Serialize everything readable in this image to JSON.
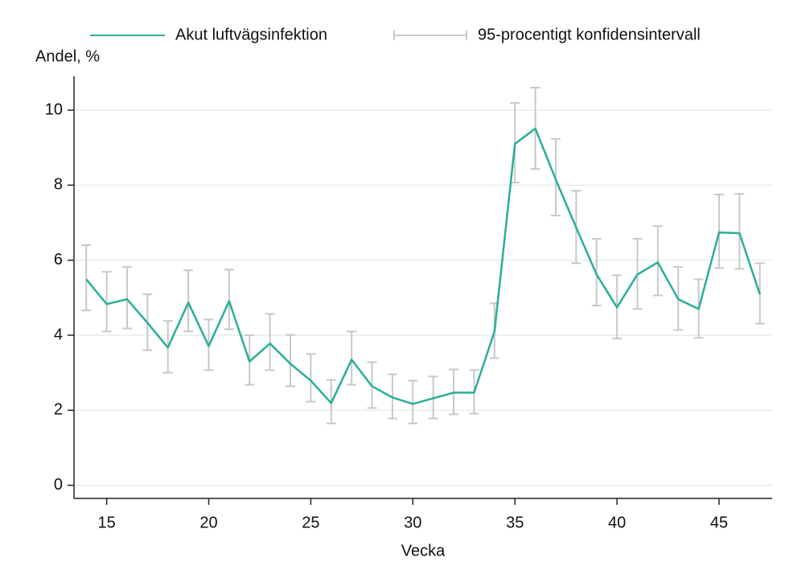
{
  "chart_data": {
    "type": "line",
    "y_label": "Andel, %",
    "x_label": "Vecka",
    "x": [
      14,
      15,
      16,
      17,
      18,
      19,
      20,
      21,
      22,
      23,
      24,
      25,
      26,
      27,
      28,
      29,
      30,
      31,
      32,
      33,
      34,
      35,
      36,
      37,
      38,
      39,
      40,
      41,
      42,
      43,
      44,
      45,
      46,
      47
    ],
    "series": [
      {
        "name": "Akut luftvägsinfektion",
        "color": "#2aae97",
        "values": [
          5.49,
          4.83,
          4.96,
          4.33,
          3.67,
          4.87,
          3.71,
          4.91,
          3.3,
          3.78,
          3.24,
          2.79,
          2.19,
          3.35,
          2.64,
          2.34,
          2.17,
          2.32,
          2.47,
          2.47,
          4.1,
          9.1,
          9.51,
          8.15,
          6.87,
          5.62,
          4.74,
          5.62,
          5.94,
          4.96,
          4.7,
          6.74,
          6.72,
          5.09
        ]
      },
      {
        "name": "95-procentigt konfidensintervall",
        "color": "#c8c8c8",
        "lower": [
          4.66,
          4.1,
          4.18,
          3.6,
          3.0,
          4.1,
          3.07,
          4.16,
          2.68,
          3.07,
          2.64,
          2.23,
          1.65,
          2.68,
          2.06,
          1.78,
          1.65,
          1.78,
          1.89,
          1.91,
          3.39,
          8.07,
          8.43,
          7.19,
          5.92,
          4.79,
          3.91,
          4.7,
          5.06,
          4.14,
          3.93,
          5.79,
          5.77,
          4.31
        ],
        "upper": [
          6.4,
          5.69,
          5.82,
          5.09,
          4.38,
          5.73,
          4.42,
          5.75,
          4.0,
          4.57,
          4.01,
          3.5,
          2.81,
          4.1,
          3.28,
          2.96,
          2.79,
          2.9,
          3.09,
          3.07,
          4.85,
          10.19,
          10.6,
          9.23,
          7.85,
          6.57,
          5.6,
          6.57,
          6.91,
          5.82,
          5.49,
          7.75,
          7.77,
          5.92
        ]
      }
    ],
    "xlim": [
      13.4,
      47.6
    ],
    "xticks": [
      15,
      20,
      25,
      30,
      35,
      40,
      45
    ],
    "ylim": [
      -0.35,
      10.9
    ],
    "yticks": [
      0,
      2,
      4,
      6,
      8,
      10
    ],
    "grid": true,
    "grid_color": "#e3efec"
  }
}
